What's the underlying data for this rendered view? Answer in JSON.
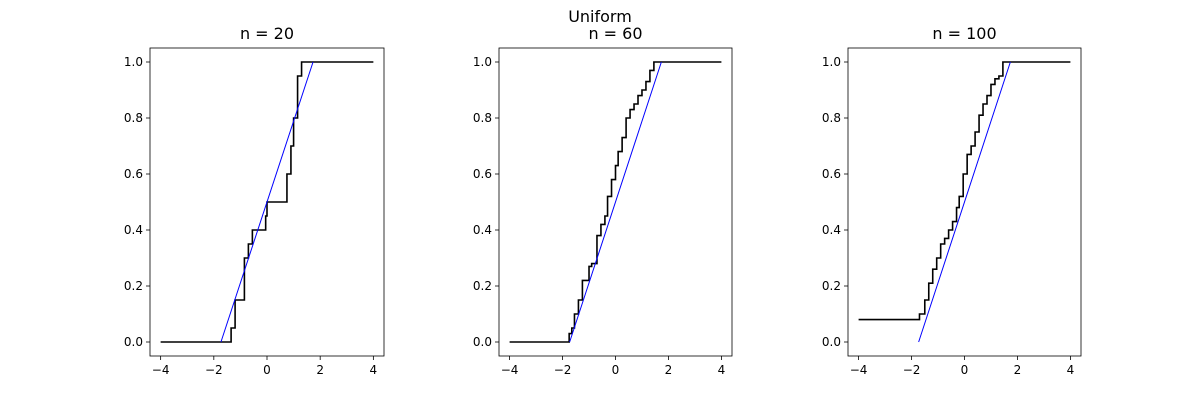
{
  "figure": {
    "suptitle": "Uniform"
  },
  "colors": {
    "ecdf": "#000000",
    "cdf": "#0000ff",
    "axes": "#000000"
  },
  "chart_data": [
    {
      "type": "line",
      "title": "n = 20",
      "xlabel": "",
      "ylabel": "",
      "xlim": [
        -4.4,
        4.4
      ],
      "ylim": [
        -0.05,
        1.05
      ],
      "xticks": [
        -4,
        -2,
        0,
        2,
        4
      ],
      "xtick_labels": [
        "−4",
        "−2",
        "0",
        "2",
        "4"
      ],
      "yticks": [
        0.0,
        0.2,
        0.4,
        0.6,
        0.8,
        1.0
      ],
      "ytick_labels": [
        "0.0",
        "0.2",
        "0.4",
        "0.6",
        "0.8",
        "1.0"
      ],
      "grid": false,
      "series": [
        {
          "kind": "ecdf",
          "style": "step",
          "x": [
            -4,
            -1.35,
            -1.2,
            -0.85,
            -0.7,
            -0.55,
            -0.5,
            -0.05,
            0.0,
            0.75,
            0.9,
            1.0,
            1.15,
            1.3,
            4
          ],
          "y": [
            0.0,
            0.05,
            0.15,
            0.3,
            0.35,
            0.4,
            0.4,
            0.45,
            0.5,
            0.6,
            0.7,
            0.8,
            0.95,
            1.0,
            1.0
          ]
        },
        {
          "kind": "theoretical",
          "style": "line",
          "x": [
            -1.732,
            1.732
          ],
          "y": [
            0.0,
            1.0
          ]
        }
      ]
    },
    {
      "type": "line",
      "title": "n = 60",
      "xlabel": "",
      "ylabel": "",
      "xlim": [
        -4.4,
        4.4
      ],
      "ylim": [
        -0.05,
        1.05
      ],
      "xticks": [
        -4,
        -2,
        0,
        2,
        4
      ],
      "xtick_labels": [
        "−4",
        "−2",
        "0",
        "2",
        "4"
      ],
      "yticks": [
        0.0,
        0.2,
        0.4,
        0.6,
        0.8,
        1.0
      ],
      "ytick_labels": [
        "0.0",
        "0.2",
        "0.4",
        "0.6",
        "0.8",
        "1.0"
      ],
      "grid": false,
      "series": [
        {
          "kind": "ecdf",
          "style": "step",
          "x": [
            -4,
            -1.75,
            -1.65,
            -1.55,
            -1.4,
            -1.25,
            -1.0,
            -0.9,
            -0.7,
            -0.55,
            -0.4,
            -0.3,
            -0.15,
            0.0,
            0.1,
            0.25,
            0.4,
            0.55,
            0.7,
            0.85,
            1.0,
            1.15,
            1.3,
            1.45,
            1.6,
            4
          ],
          "y": [
            0.0,
            0.03,
            0.05,
            0.1,
            0.15,
            0.22,
            0.27,
            0.28,
            0.38,
            0.42,
            0.45,
            0.52,
            0.58,
            0.63,
            0.68,
            0.73,
            0.8,
            0.83,
            0.85,
            0.88,
            0.9,
            0.93,
            0.97,
            1.0,
            1.0,
            1.0
          ]
        },
        {
          "kind": "theoretical",
          "style": "line",
          "x": [
            -1.732,
            1.732
          ],
          "y": [
            0.0,
            1.0
          ]
        }
      ]
    },
    {
      "type": "line",
      "title": "n = 100",
      "xlabel": "",
      "ylabel": "",
      "xlim": [
        -4.4,
        4.4
      ],
      "ylim": [
        -0.05,
        1.05
      ],
      "xticks": [
        -4,
        -2,
        0,
        2,
        4
      ],
      "xtick_labels": [
        "−4",
        "−2",
        "0",
        "2",
        "4"
      ],
      "yticks": [
        0.0,
        0.2,
        0.4,
        0.6,
        0.8,
        1.0
      ],
      "ytick_labels": [
        "0.0",
        "0.2",
        "0.4",
        "0.6",
        "0.8",
        "1.0"
      ],
      "grid": false,
      "series": [
        {
          "kind": "ecdf",
          "style": "step",
          "x": [
            -4,
            -1.7,
            -1.5,
            -1.35,
            -1.2,
            -1.05,
            -0.9,
            -0.75,
            -0.6,
            -0.45,
            -0.3,
            -0.2,
            -0.05,
            0.1,
            0.25,
            0.4,
            0.55,
            0.7,
            0.85,
            1.0,
            1.15,
            1.3,
            1.45,
            1.6,
            4
          ],
          "y": [
            0.08,
            0.1,
            0.15,
            0.21,
            0.26,
            0.3,
            0.35,
            0.37,
            0.4,
            0.43,
            0.48,
            0.52,
            0.6,
            0.67,
            0.7,
            0.75,
            0.81,
            0.85,
            0.88,
            0.92,
            0.94,
            0.95,
            1.0,
            1.0,
            1.0
          ]
        },
        {
          "kind": "theoretical",
          "style": "line",
          "x": [
            -1.732,
            1.732
          ],
          "y": [
            0.0,
            1.0
          ]
        }
      ]
    }
  ]
}
